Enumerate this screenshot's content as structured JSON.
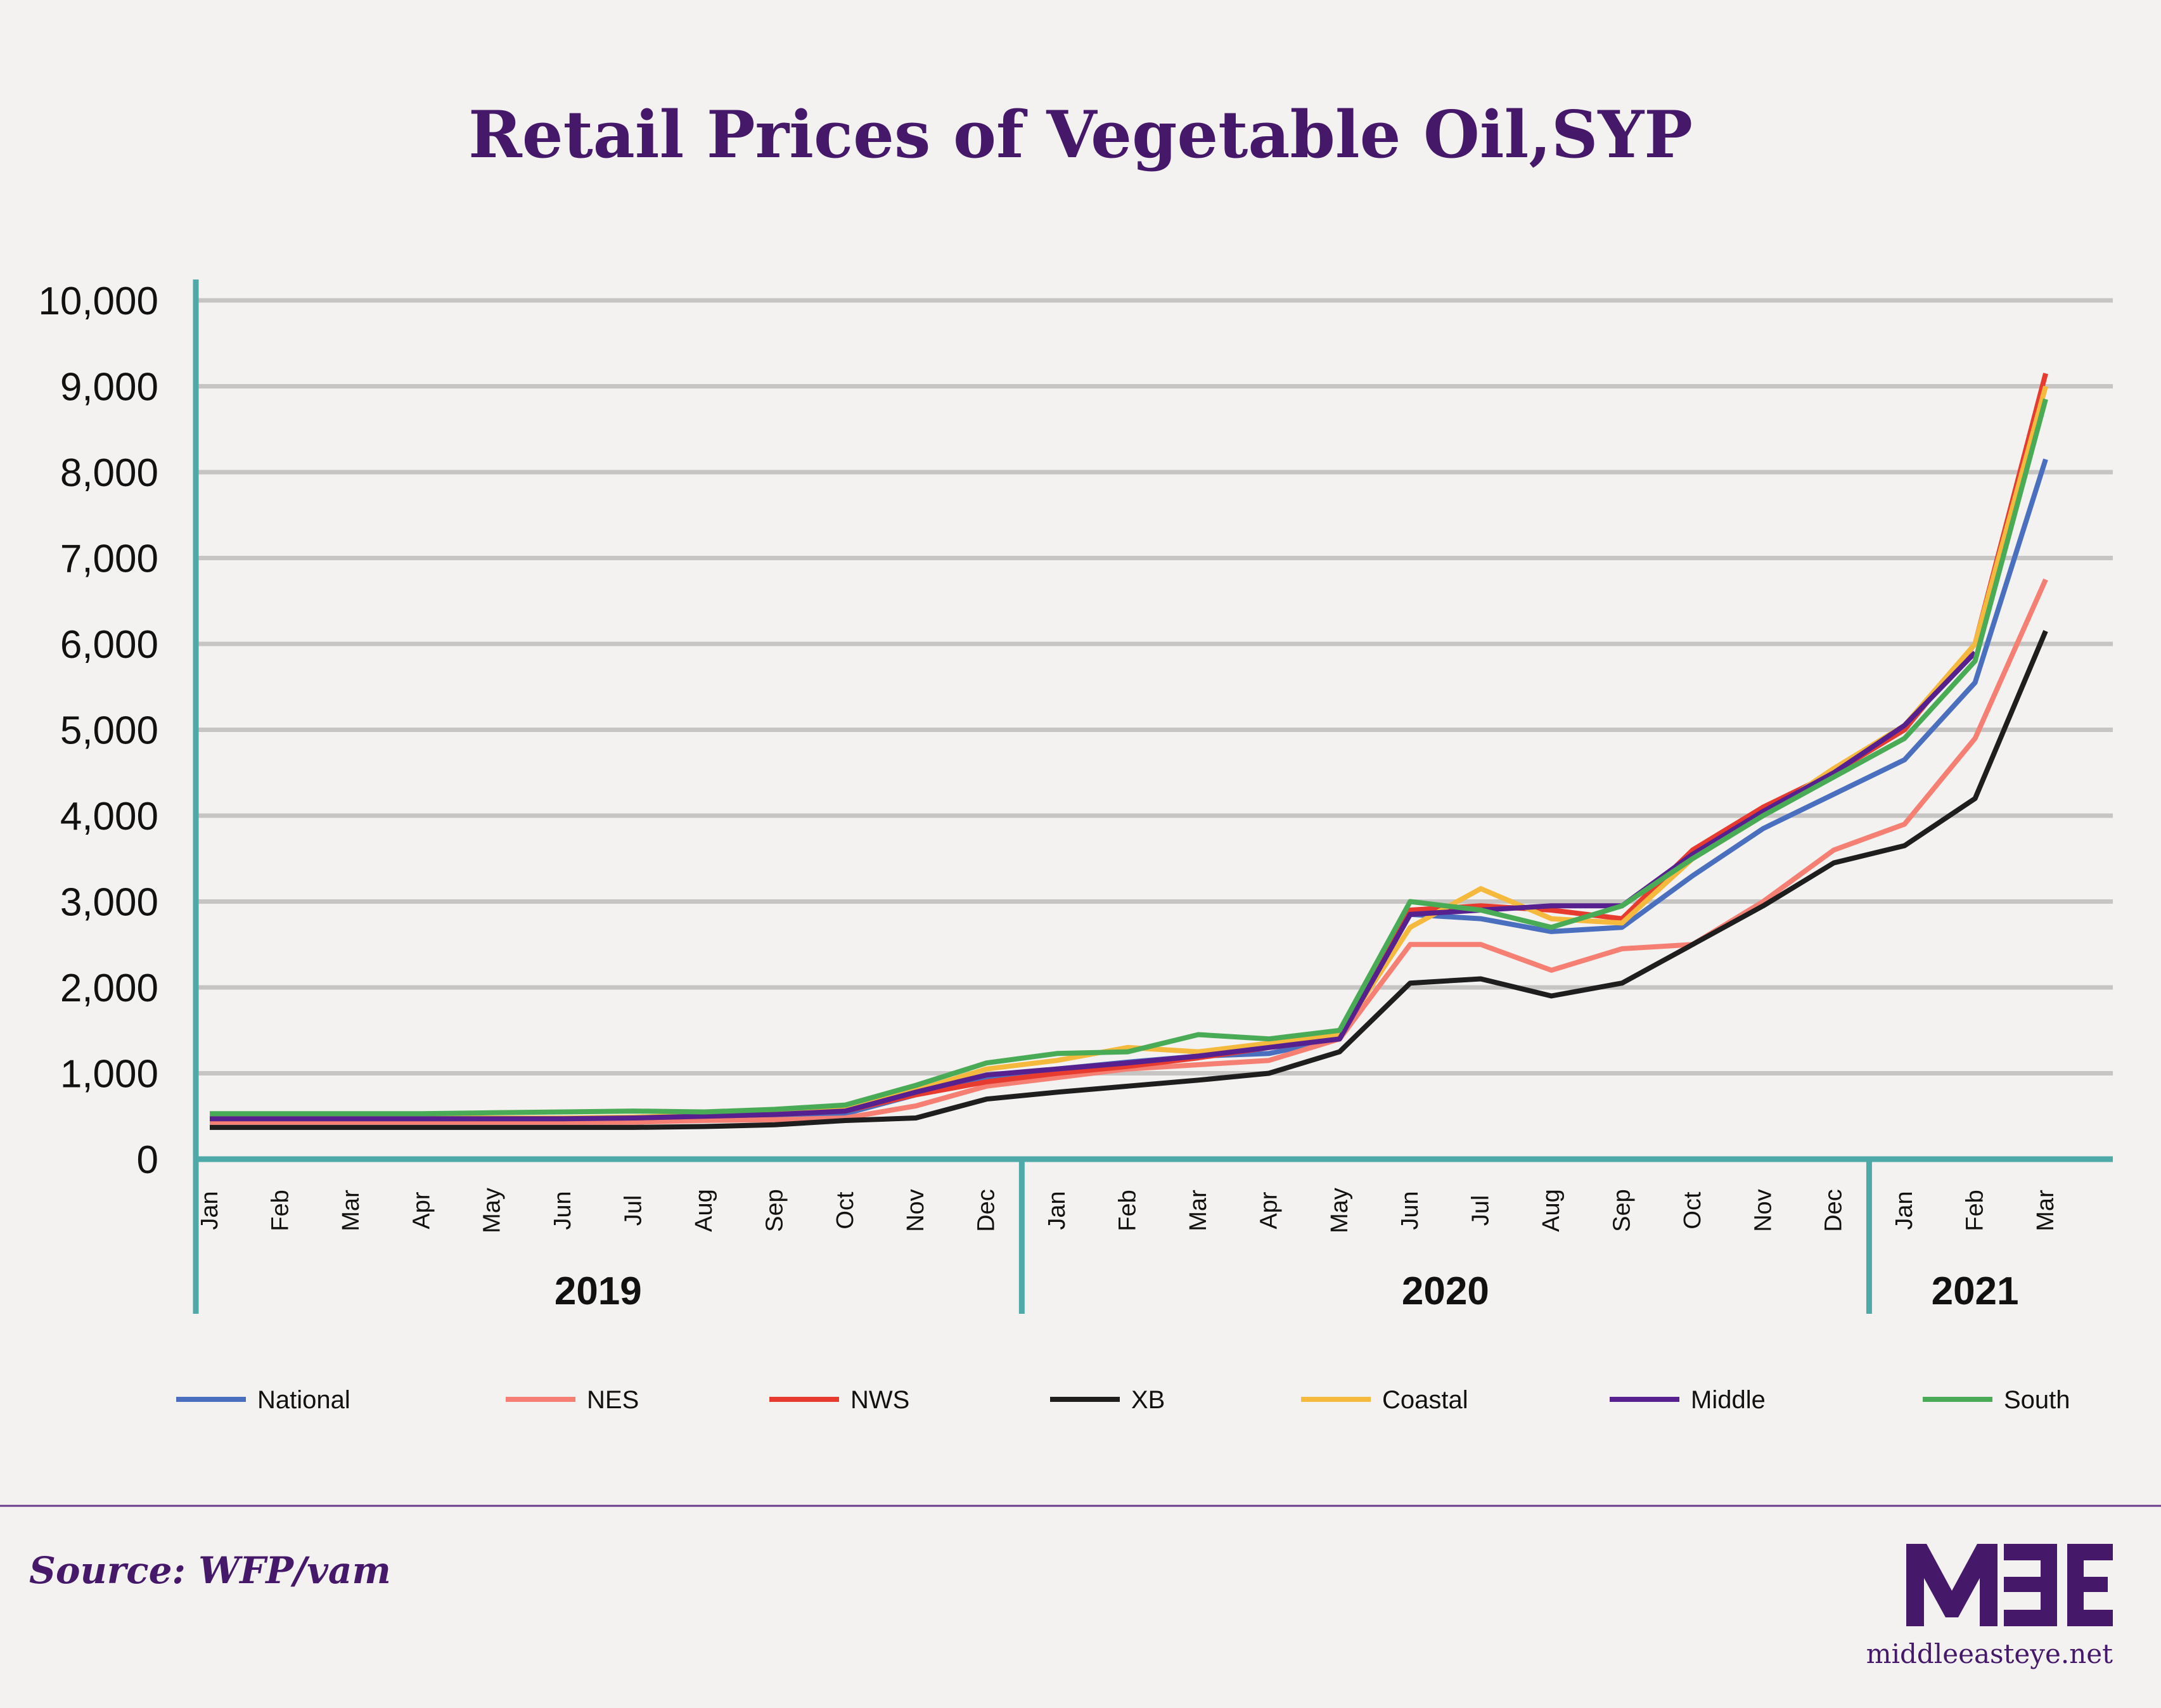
{
  "chart_data": {
    "type": "line",
    "title": "Retail Prices of Vegetable Oil,SYP",
    "xlabel": "",
    "ylabel": "",
    "ylim": [
      0,
      10000
    ],
    "yticks": [
      "0",
      "1,000",
      "2,000",
      "3,000",
      "4,000",
      "5,000",
      "6,000",
      "7,000",
      "8,000",
      "9,000",
      "10,000"
    ],
    "grid": true,
    "legend_position": "bottom",
    "categories": [
      "Jan",
      "Feb",
      "Mar",
      "Apr",
      "May",
      "Jun",
      "Jul",
      "Aug",
      "Sep",
      "Oct",
      "Nov",
      "Dec",
      "Jan",
      "Feb",
      "Mar",
      "Apr",
      "May",
      "Jun",
      "Jul",
      "Aug",
      "Sep",
      "Oct",
      "Nov",
      "Dec",
      "Jan",
      "Feb",
      "Mar"
    ],
    "year_groups": [
      {
        "label": "2019",
        "months": 12
      },
      {
        "label": "2020",
        "months": 12
      },
      {
        "label": "2021",
        "months": 3
      }
    ],
    "series": [
      {
        "name": "National",
        "color": "#4a6fbf",
        "values": [
          450,
          450,
          450,
          450,
          450,
          450,
          460,
          480,
          500,
          530,
          750,
          950,
          1050,
          1130,
          1200,
          1230,
          1400,
          2850,
          2800,
          2650,
          2700,
          3300,
          3850,
          4250,
          4650,
          5550,
          8150
        ]
      },
      {
        "name": "NES",
        "color": "#f47f72",
        "values": [
          430,
          430,
          430,
          430,
          430,
          430,
          430,
          450,
          460,
          480,
          620,
          850,
          950,
          1050,
          1100,
          1150,
          1400,
          2500,
          2500,
          2200,
          2450,
          2500,
          3000,
          3600,
          3900,
          4900,
          6750
        ]
      },
      {
        "name": "NWS",
        "color": "#e63b2e",
        "values": [
          480,
          480,
          480,
          480,
          480,
          480,
          480,
          500,
          520,
          560,
          750,
          900,
          1000,
          1080,
          1180,
          1300,
          1400,
          2900,
          2950,
          2900,
          2800,
          3600,
          4100,
          4500,
          5000,
          6000,
          9150
        ]
      },
      {
        "name": "XB",
        "color": "#1e1e1e",
        "values": [
          370,
          370,
          370,
          370,
          370,
          370,
          370,
          380,
          400,
          450,
          480,
          700,
          780,
          850,
          920,
          1000,
          1250,
          2050,
          2100,
          1900,
          2050,
          2500,
          2950,
          3450,
          3650,
          4200,
          6150
        ]
      },
      {
        "name": "Coastal",
        "color": "#f5b93e",
        "values": [
          480,
          480,
          480,
          480,
          480,
          480,
          490,
          510,
          540,
          580,
          800,
          1050,
          1150,
          1300,
          1250,
          1350,
          1450,
          2700,
          3150,
          2800,
          2750,
          3500,
          4000,
          4550,
          5050,
          6000,
          9000
        ]
      },
      {
        "name": "Middle",
        "color": "#56208f",
        "values": [
          470,
          470,
          470,
          470,
          470,
          470,
          480,
          500,
          520,
          560,
          780,
          980,
          1050,
          1120,
          1200,
          1300,
          1400,
          2850,
          2900,
          2950,
          2950,
          3550,
          4050,
          4500,
          5050,
          5900,
          null
        ]
      },
      {
        "name": "South",
        "color": "#4aab57",
        "values": [
          530,
          530,
          530,
          530,
          540,
          550,
          560,
          550,
          580,
          630,
          860,
          1120,
          1230,
          1250,
          1450,
          1400,
          1500,
          3000,
          2900,
          2700,
          2950,
          3500,
          4000,
          4450,
          4900,
          5800,
          8850
        ]
      }
    ]
  },
  "footer": {
    "source": "Source: WFP/vam",
    "logo_text": "MEE",
    "site": "middleeasteye.net"
  },
  "colors": {
    "axis": "#4eaaa9",
    "grid": "#c6c5c3",
    "brand": "#45186a"
  }
}
